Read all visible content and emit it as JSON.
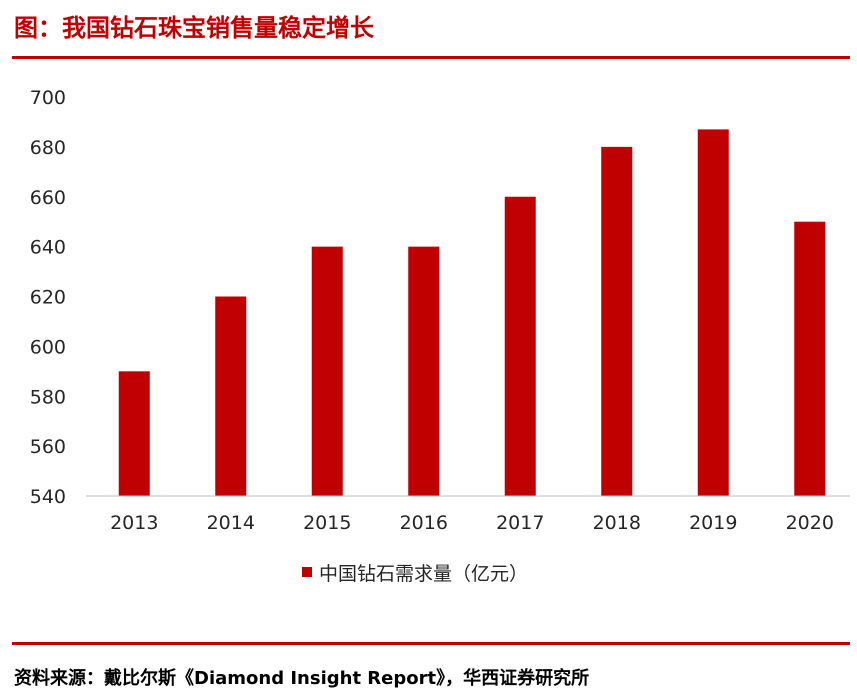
{
  "title": "图：我国钻石珠宝销售量稳定增长",
  "source": "资料来源：戴比尔斯《Diamond Insight Report》，华西证券研究所",
  "colors": {
    "accent": "#c00000",
    "bar": "#c00000",
    "axis": "#bfbfbf",
    "text": "#262626"
  },
  "chart_data": {
    "type": "bar",
    "categories": [
      "2013",
      "2014",
      "2015",
      "2016",
      "2017",
      "2018",
      "2019",
      "2020"
    ],
    "series": [
      {
        "name": "中国钻石需求量（亿元）",
        "values": [
          590,
          620,
          640,
          640,
          660,
          680,
          687,
          650
        ]
      }
    ],
    "yticks": [
      "540",
      "560",
      "580",
      "600",
      "620",
      "640",
      "660",
      "680",
      "700"
    ],
    "ylim": [
      540,
      700
    ],
    "grid": false,
    "legend": "bottom",
    "xlabel": "",
    "ylabel": ""
  }
}
